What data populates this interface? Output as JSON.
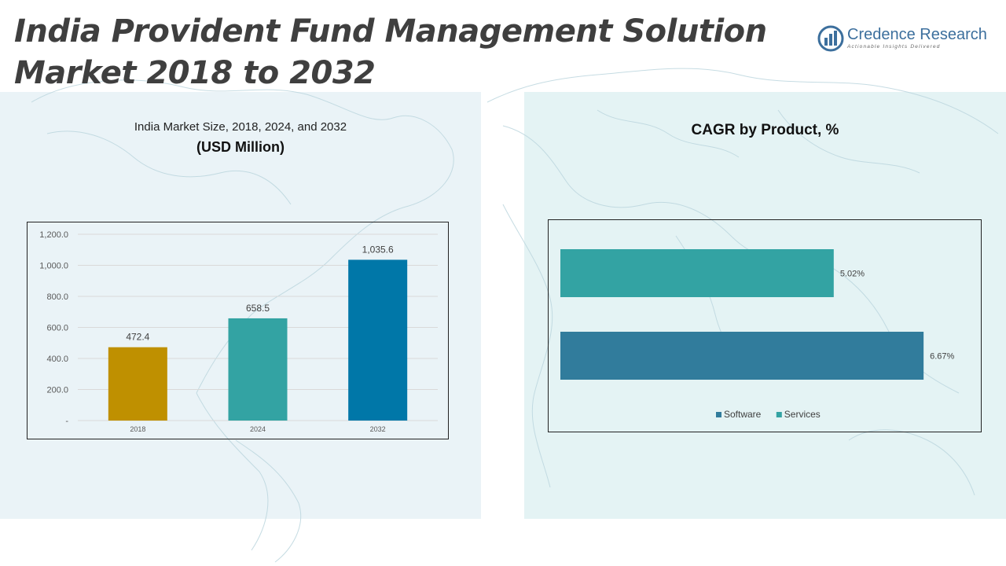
{
  "header": {
    "title_line1": "India Provident Fund Management Solution",
    "title_line2": "Market 2018 to 2032"
  },
  "logo": {
    "name": "Credence Research",
    "tagline": "Actionable Insights Delivered",
    "color": "#3c6f9d"
  },
  "left_panel": {
    "subtitle": "India Market Size, 2018, 2024, and 2032",
    "unit": "(USD Million)"
  },
  "right_panel": {
    "title": "CAGR by Product, %"
  },
  "chart_data": [
    {
      "type": "bar",
      "title": "India Market Size, 2018, 2024, and 2032",
      "ylabel": "(USD Million)",
      "categories": [
        "2018",
        "2024",
        "2032"
      ],
      "values": [
        472.4,
        658.5,
        1035.6
      ],
      "value_labels": [
        "472.4",
        "658.5",
        "1,035.6"
      ],
      "colors": [
        "#bf9000",
        "#33a3a3",
        "#0077a8"
      ],
      "ylim": [
        0,
        1200
      ],
      "yticks": [
        0,
        200,
        400,
        600,
        800,
        1000,
        1200
      ],
      "ytick_labels": [
        "-",
        "200.0",
        "400.0",
        "600.0",
        "800.0",
        "1,000.0",
        "1,200.0"
      ],
      "grid": true
    },
    {
      "type": "bar",
      "orientation": "horizontal",
      "title": "CAGR by Product, %",
      "series": [
        {
          "name": "Services",
          "value": 5.02,
          "label": "5.02%",
          "color": "#33a3a3"
        },
        {
          "name": "Software",
          "value": 6.67,
          "label": "6.67%",
          "color": "#317c9c"
        }
      ],
      "legend": [
        "Software",
        "Services"
      ],
      "legend_placement": "bottom",
      "xlim": [
        0,
        7.0
      ]
    }
  ]
}
